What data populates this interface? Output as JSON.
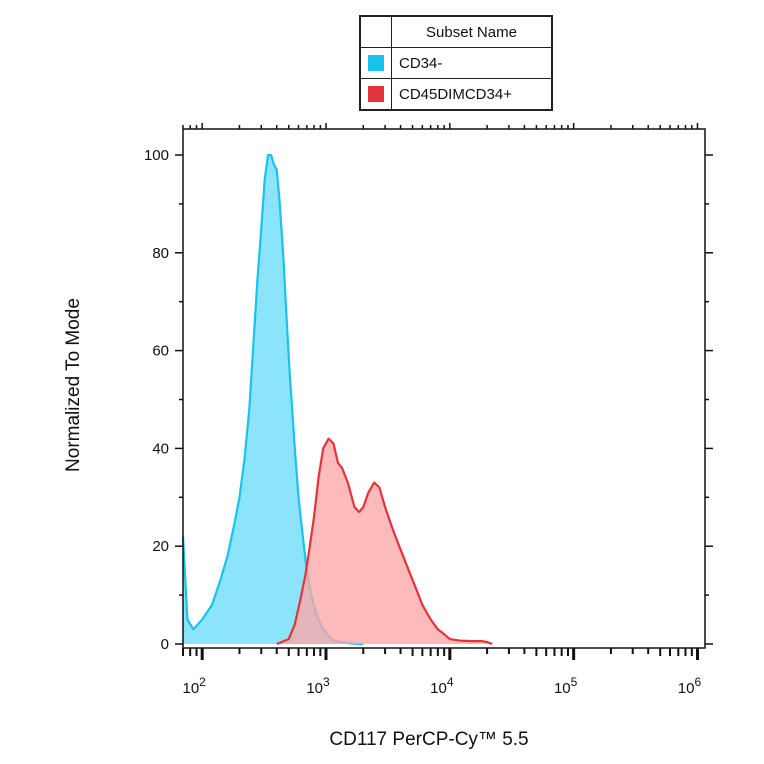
{
  "chart_data": {
    "type": "area",
    "xlabel": "CD117  PerCP-Cy™ 5.5",
    "ylabel": "Normalized To Mode",
    "xscale": "log",
    "xlim": [
      70,
      1150000
    ],
    "ylim": [
      0,
      105
    ],
    "x_ticks": [
      {
        "base": "10",
        "exp": "2",
        "value": 100
      },
      {
        "base": "10",
        "exp": "3",
        "value": 1000
      },
      {
        "base": "10",
        "exp": "4",
        "value": 10000
      },
      {
        "base": "10",
        "exp": "5",
        "value": 100000
      },
      {
        "base": "10",
        "exp": "6",
        "value": 1000000
      }
    ],
    "y_ticks": [
      0,
      20,
      40,
      60,
      80,
      100
    ],
    "legend": {
      "header": "Subset Name",
      "placement": "top-center"
    },
    "series": [
      {
        "name": "CD34-",
        "color": "#19c2f0",
        "fill": "#80e1fa",
        "points": [
          [
            70,
            22
          ],
          [
            76,
            5
          ],
          [
            85,
            3
          ],
          [
            100,
            5
          ],
          [
            120,
            8
          ],
          [
            140,
            13
          ],
          [
            160,
            18
          ],
          [
            180,
            24
          ],
          [
            200,
            30
          ],
          [
            220,
            38
          ],
          [
            240,
            48
          ],
          [
            260,
            62
          ],
          [
            280,
            75
          ],
          [
            300,
            85
          ],
          [
            320,
            95
          ],
          [
            340,
            100
          ],
          [
            360,
            100
          ],
          [
            380,
            98
          ],
          [
            400,
            97
          ],
          [
            420,
            91
          ],
          [
            450,
            80
          ],
          [
            480,
            67
          ],
          [
            510,
            55
          ],
          [
            560,
            40
          ],
          [
            600,
            30
          ],
          [
            650,
            22
          ],
          [
            700,
            15
          ],
          [
            760,
            10
          ],
          [
            840,
            6
          ],
          [
            950,
            3
          ],
          [
            1100,
            1
          ],
          [
            1300,
            0.4
          ],
          [
            1600,
            0.1
          ],
          [
            2000,
            0
          ]
        ]
      },
      {
        "name": "CD45DIMCD34+",
        "color": "#e4333b",
        "fill": "#fba6a6",
        "points": [
          [
            400,
            0
          ],
          [
            500,
            1
          ],
          [
            560,
            4
          ],
          [
            620,
            9
          ],
          [
            680,
            14
          ],
          [
            730,
            19
          ],
          [
            800,
            26
          ],
          [
            870,
            34
          ],
          [
            950,
            40
          ],
          [
            1050,
            42
          ],
          [
            1150,
            41
          ],
          [
            1250,
            37
          ],
          [
            1350,
            36
          ],
          [
            1500,
            33
          ],
          [
            1700,
            28
          ],
          [
            1850,
            27
          ],
          [
            2000,
            28
          ],
          [
            2200,
            31
          ],
          [
            2450,
            33
          ],
          [
            2700,
            32
          ],
          [
            3000,
            28
          ],
          [
            3400,
            24
          ],
          [
            3900,
            20
          ],
          [
            4500,
            16
          ],
          [
            5200,
            12
          ],
          [
            6000,
            8
          ],
          [
            7000,
            5
          ],
          [
            8000,
            3
          ],
          [
            9000,
            2
          ],
          [
            10000,
            1
          ],
          [
            12000,
            0.7
          ],
          [
            15000,
            0.6
          ],
          [
            18000,
            0.6
          ],
          [
            20000,
            0.4
          ],
          [
            22000,
            0
          ]
        ]
      }
    ]
  }
}
